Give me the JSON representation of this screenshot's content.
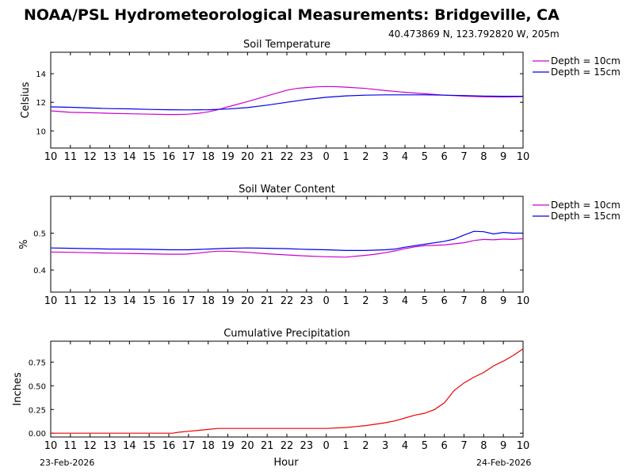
{
  "header": {
    "title": "NOAA/PSL Hydrometeorological Measurements: Bridgeville, CA",
    "coordinates": "40.473869 N, 123.792820 W, 205m"
  },
  "footer": {
    "start_date": "23-Feb-2026",
    "end_date": "24-Feb-2026",
    "xlabel": "Hour"
  },
  "colors": {
    "depth_10cm": "#cc00cc",
    "depth_15cm": "#0000ee",
    "precip": "#ee0000"
  },
  "chart_data": [
    {
      "type": "line",
      "title": "Soil Temperature",
      "ylabel": "Celsius",
      "xlabel": "",
      "x_ticks": [
        "10",
        "11",
        "12",
        "13",
        "14",
        "15",
        "16",
        "17",
        "18",
        "19",
        "20",
        "21",
        "22",
        "23",
        "0",
        "1",
        "2",
        "3",
        "4",
        "5",
        "6",
        "7",
        "8",
        "9",
        "10"
      ],
      "xlim": [
        0,
        24
      ],
      "ylim": [
        8.8,
        15.5
      ],
      "y_ticks": [
        10,
        12,
        14
      ],
      "y_tick_labels": [
        "10",
        "12",
        "14"
      ],
      "legend": "right",
      "series": [
        {
          "name": "Depth = 10cm",
          "color": "#cc00cc",
          "x": [
            0,
            1,
            2,
            3,
            4,
            5,
            6,
            6.5,
            7,
            7.5,
            8,
            8.5,
            9,
            10,
            11,
            12,
            12.5,
            13,
            13.5,
            14,
            14.5,
            15,
            16,
            17,
            18,
            19,
            20,
            21,
            22,
            23,
            24
          ],
          "y": [
            11.4,
            11.3,
            11.27,
            11.23,
            11.2,
            11.17,
            11.15,
            11.15,
            11.17,
            11.23,
            11.33,
            11.48,
            11.68,
            12.05,
            12.45,
            12.85,
            12.97,
            13.03,
            13.08,
            13.1,
            13.09,
            13.06,
            12.97,
            12.82,
            12.7,
            12.6,
            12.5,
            12.43,
            12.38,
            12.37,
            12.4
          ]
        },
        {
          "name": "Depth = 15cm",
          "color": "#0000ee",
          "x": [
            0,
            1,
            2,
            3,
            4,
            5,
            6,
            7,
            8,
            9,
            10,
            11,
            12,
            13,
            14,
            15,
            16,
            17,
            18,
            19,
            20,
            21,
            22,
            23,
            24
          ],
          "y": [
            11.68,
            11.65,
            11.6,
            11.56,
            11.54,
            11.5,
            11.48,
            11.47,
            11.48,
            11.53,
            11.63,
            11.8,
            12.0,
            12.2,
            12.35,
            12.45,
            12.5,
            12.52,
            12.52,
            12.52,
            12.5,
            12.47,
            12.44,
            12.42,
            12.42
          ]
        }
      ]
    },
    {
      "type": "line",
      "title": "Soil Water Content",
      "ylabel": "%",
      "xlabel": "",
      "x_ticks": [
        "10",
        "11",
        "12",
        "13",
        "14",
        "15",
        "16",
        "17",
        "18",
        "19",
        "20",
        "21",
        "22",
        "23",
        "0",
        "1",
        "2",
        "3",
        "4",
        "5",
        "6",
        "7",
        "8",
        "9",
        "10"
      ],
      "xlim": [
        0,
        24
      ],
      "ylim": [
        0.34,
        0.6
      ],
      "y_ticks": [
        0.4,
        0.5
      ],
      "y_tick_labels": [
        "0.4",
        "0.5"
      ],
      "legend": "right",
      "series": [
        {
          "name": "Depth = 10cm",
          "color": "#cc00cc",
          "x": [
            0,
            1,
            2,
            3,
            4,
            5,
            6,
            6.8,
            7.5,
            8,
            8.5,
            9,
            10,
            11,
            12,
            13,
            14,
            15,
            16,
            16.5,
            17,
            17.5,
            18,
            18.5,
            19,
            20,
            21,
            21.5,
            22,
            22.5,
            23,
            23.5,
            24
          ],
          "y": [
            0.449,
            0.448,
            0.447,
            0.446,
            0.445,
            0.444,
            0.443,
            0.443,
            0.446,
            0.449,
            0.451,
            0.451,
            0.448,
            0.444,
            0.441,
            0.438,
            0.436,
            0.435,
            0.44,
            0.443,
            0.447,
            0.452,
            0.458,
            0.463,
            0.466,
            0.468,
            0.474,
            0.48,
            0.483,
            0.482,
            0.484,
            0.483,
            0.485
          ]
        },
        {
          "name": "Depth = 15cm",
          "color": "#0000ee",
          "x": [
            0,
            1,
            2,
            3,
            4,
            5,
            6,
            7,
            8,
            9,
            10,
            11,
            12,
            13,
            14,
            15,
            16,
            17,
            17.5,
            18,
            19,
            20,
            20.5,
            21,
            21.5,
            22,
            22.5,
            23,
            23.5,
            24
          ],
          "y": [
            0.46,
            0.459,
            0.458,
            0.457,
            0.457,
            0.456,
            0.455,
            0.455,
            0.457,
            0.459,
            0.46,
            0.459,
            0.458,
            0.456,
            0.455,
            0.453,
            0.453,
            0.455,
            0.457,
            0.462,
            0.47,
            0.478,
            0.484,
            0.495,
            0.505,
            0.504,
            0.498,
            0.502,
            0.5,
            0.5
          ]
        }
      ]
    },
    {
      "type": "line",
      "title": "Cumulative Precipitation",
      "ylabel": "Inches",
      "xlabel": "Hour",
      "x_ticks": [
        "10",
        "11",
        "12",
        "13",
        "14",
        "15",
        "16",
        "17",
        "18",
        "19",
        "20",
        "21",
        "22",
        "23",
        "0",
        "1",
        "2",
        "3",
        "4",
        "5",
        "6",
        "7",
        "8",
        "9",
        "10"
      ],
      "xlim": [
        0,
        24
      ],
      "ylim": [
        -0.04,
        0.97
      ],
      "y_ticks": [
        0,
        0.25,
        0.5,
        0.75
      ],
      "y_tick_labels": [
        "0.00",
        "0.25",
        "0.50",
        "0.75"
      ],
      "legend": "none",
      "series": [
        {
          "name": "Precipitation",
          "color": "#ee0000",
          "x": [
            0,
            6.2,
            6.5,
            7,
            7.5,
            8,
            8.5,
            9,
            14,
            15,
            15.5,
            16,
            17,
            17.5,
            18,
            18.5,
            19,
            19.5,
            20,
            20.5,
            21,
            21.5,
            22,
            22.5,
            23,
            23.5,
            24
          ],
          "y": [
            0,
            0,
            0.01,
            0.02,
            0.03,
            0.04,
            0.05,
            0.05,
            0.05,
            0.06,
            0.07,
            0.08,
            0.11,
            0.13,
            0.16,
            0.19,
            0.21,
            0.25,
            0.32,
            0.45,
            0.53,
            0.59,
            0.64,
            0.71,
            0.76,
            0.82,
            0.89
          ]
        }
      ]
    }
  ]
}
